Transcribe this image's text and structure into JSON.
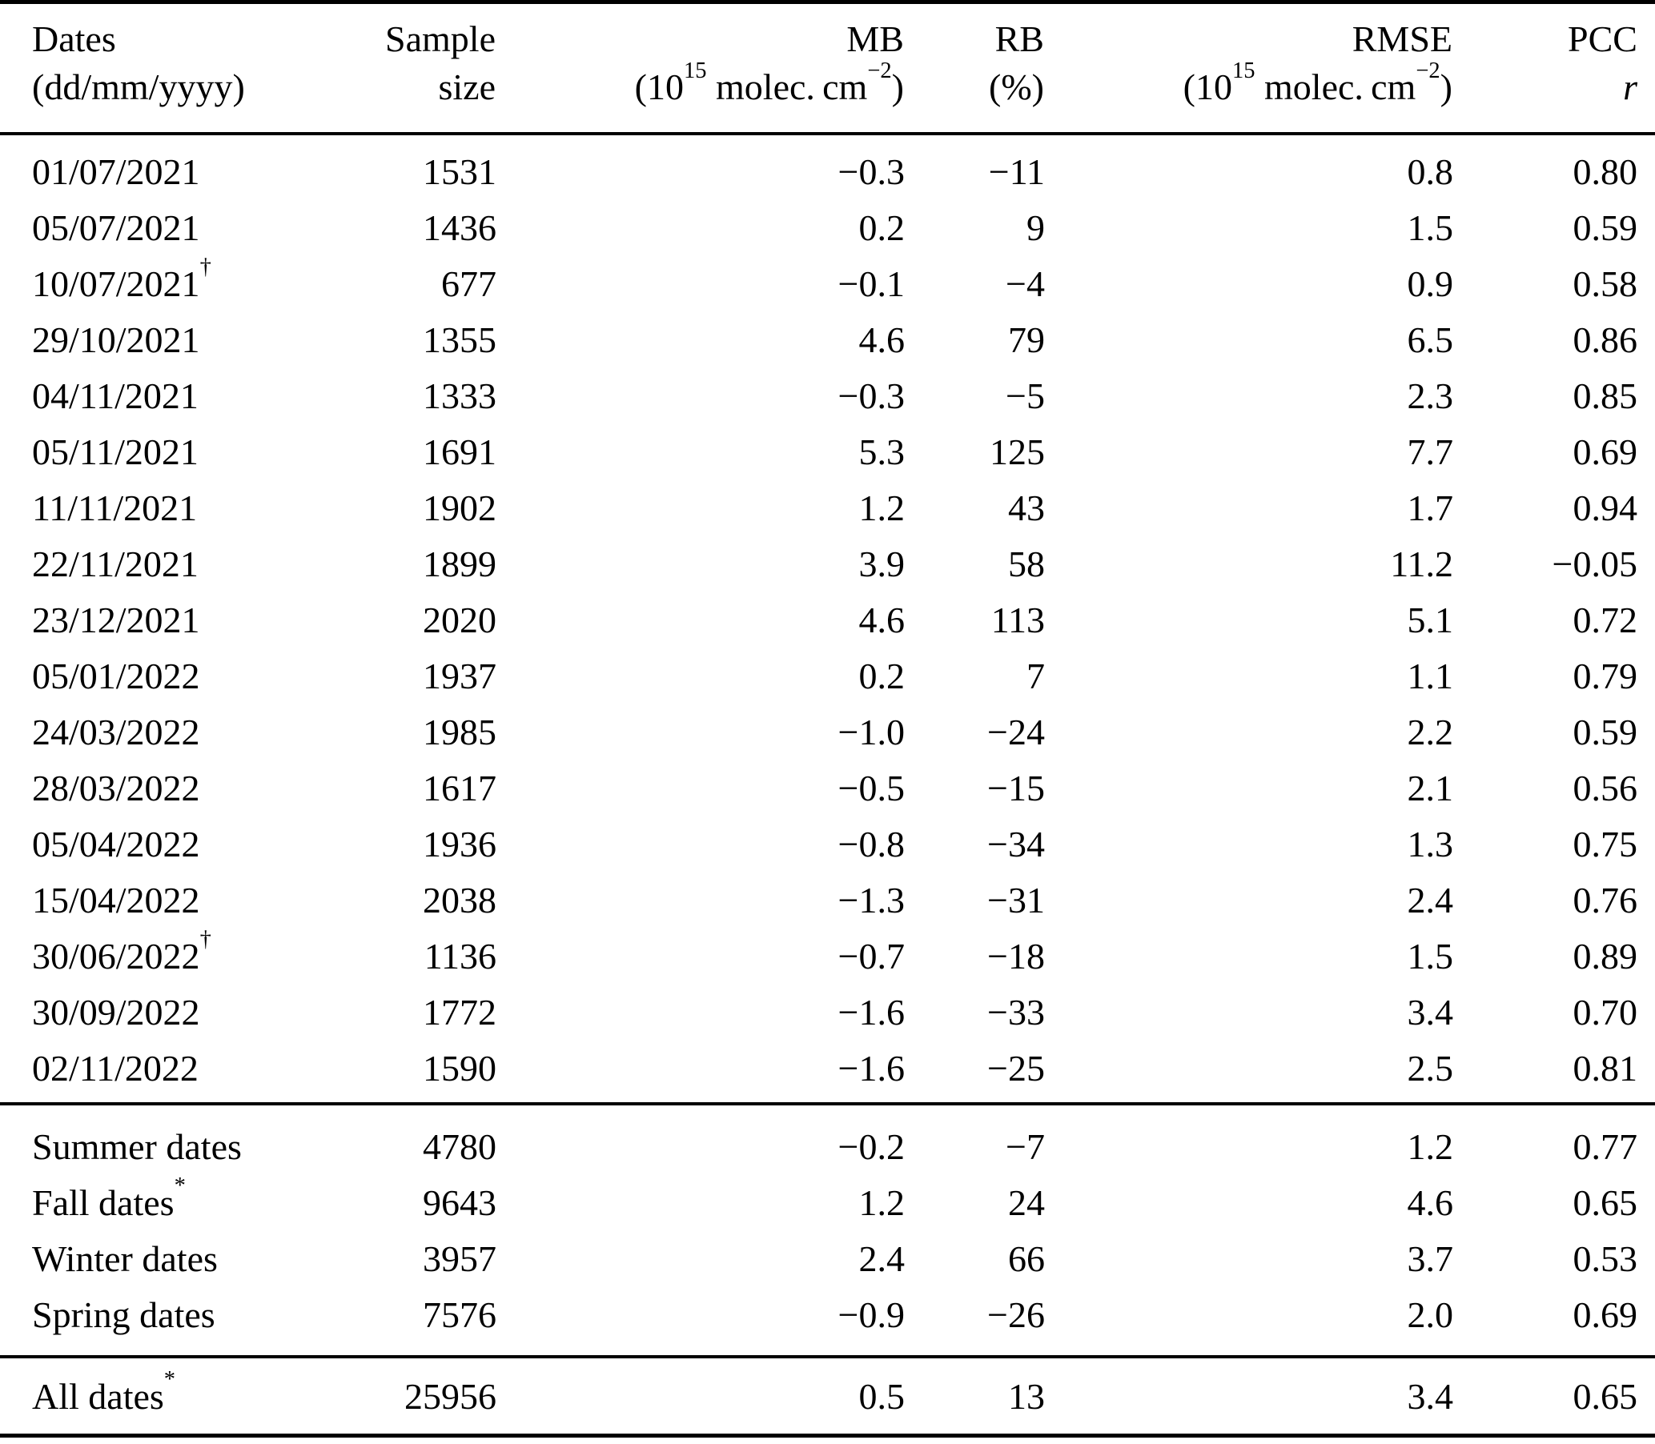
{
  "table": {
    "header": {
      "col_dates": {
        "line1": "Dates",
        "line2": "(dd/mm/yyyy)"
      },
      "col_sample": {
        "line1": "Sample",
        "line2": "size"
      },
      "col_mb": {
        "line1": "MB",
        "unit": [
          {
            "t": "(10"
          },
          {
            "t": "15",
            "sup": true
          },
          {
            "t": " molec. cm"
          },
          {
            "t": "−2",
            "sup": true
          },
          {
            "t": ")"
          }
        ]
      },
      "col_rb": {
        "line1": "RB",
        "line2": "(%)"
      },
      "col_rmse": {
        "line1": "RMSE",
        "unit": [
          {
            "t": "(10"
          },
          {
            "t": "15",
            "sup": true
          },
          {
            "t": " molec. cm"
          },
          {
            "t": "−2",
            "sup": true
          },
          {
            "t": ")"
          }
        ]
      },
      "col_pcc": {
        "line1": "PCC",
        "line2": "r"
      }
    },
    "sections": {
      "daily": [
        {
          "label": "01/07/2021",
          "sup": "",
          "values": [
            "1531",
            "−0.3",
            "−11",
            "0.8",
            "0.80"
          ]
        },
        {
          "label": "05/07/2021",
          "sup": "",
          "values": [
            "1436",
            "0.2",
            "9",
            "1.5",
            "0.59"
          ]
        },
        {
          "label": "10/07/2021",
          "sup": "†",
          "values": [
            "677",
            "−0.1",
            "−4",
            "0.9",
            "0.58"
          ]
        },
        {
          "label": "29/10/2021",
          "sup": "",
          "values": [
            "1355",
            "4.6",
            "79",
            "6.5",
            "0.86"
          ]
        },
        {
          "label": "04/11/2021",
          "sup": "",
          "values": [
            "1333",
            "−0.3",
            "−5",
            "2.3",
            "0.85"
          ]
        },
        {
          "label": "05/11/2021",
          "sup": "",
          "values": [
            "1691",
            "5.3",
            "125",
            "7.7",
            "0.69"
          ]
        },
        {
          "label": "11/11/2021",
          "sup": "",
          "values": [
            "1902",
            "1.2",
            "43",
            "1.7",
            "0.94"
          ]
        },
        {
          "label": "22/11/2021",
          "sup": "",
          "values": [
            "1899",
            "3.9",
            "58",
            "11.2",
            "−0.05"
          ]
        },
        {
          "label": "23/12/2021",
          "sup": "",
          "values": [
            "2020",
            "4.6",
            "113",
            "5.1",
            "0.72"
          ]
        },
        {
          "label": "05/01/2022",
          "sup": "",
          "values": [
            "1937",
            "0.2",
            "7",
            "1.1",
            "0.79"
          ]
        },
        {
          "label": "24/03/2022",
          "sup": "",
          "values": [
            "1985",
            "−1.0",
            "−24",
            "2.2",
            "0.59"
          ]
        },
        {
          "label": "28/03/2022",
          "sup": "",
          "values": [
            "1617",
            "−0.5",
            "−15",
            "2.1",
            "0.56"
          ]
        },
        {
          "label": "05/04/2022",
          "sup": "",
          "values": [
            "1936",
            "−0.8",
            "−34",
            "1.3",
            "0.75"
          ]
        },
        {
          "label": "15/04/2022",
          "sup": "",
          "values": [
            "2038",
            "−1.3",
            "−31",
            "2.4",
            "0.76"
          ]
        },
        {
          "label": "30/06/2022",
          "sup": "†",
          "values": [
            "1136",
            "−0.7",
            "−18",
            "1.5",
            "0.89"
          ]
        },
        {
          "label": "30/09/2022",
          "sup": "",
          "values": [
            "1772",
            "−1.6",
            "−33",
            "3.4",
            "0.70"
          ]
        },
        {
          "label": "02/11/2022",
          "sup": "",
          "values": [
            "1590",
            "−1.6",
            "−25",
            "2.5",
            "0.81"
          ]
        }
      ],
      "seasonal": [
        {
          "label": "Summer dates",
          "sup": "",
          "values": [
            "4780",
            "−0.2",
            "−7",
            "1.2",
            "0.77"
          ]
        },
        {
          "label": "Fall dates",
          "sup": "*",
          "values": [
            "9643",
            "1.2",
            "24",
            "4.6",
            "0.65"
          ]
        },
        {
          "label": "Winter dates",
          "sup": "",
          "values": [
            "3957",
            "2.4",
            "66",
            "3.7",
            "0.53"
          ]
        },
        {
          "label": "Spring dates",
          "sup": "",
          "values": [
            "7576",
            "−0.9",
            "−26",
            "2.0",
            "0.69"
          ]
        }
      ],
      "total": [
        {
          "label": "All dates",
          "sup": "*",
          "values": [
            "25956",
            "0.5",
            "13",
            "3.4",
            "0.65"
          ]
        }
      ]
    }
  }
}
